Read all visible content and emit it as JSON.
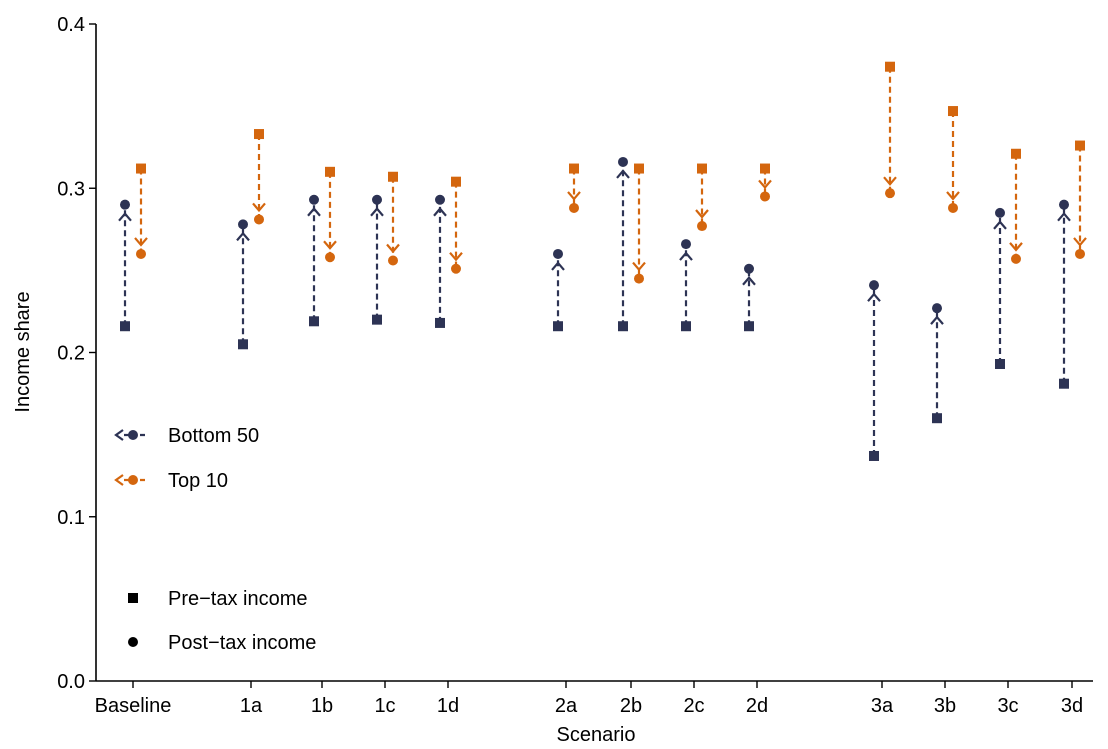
{
  "chart_data": {
    "type": "scatter",
    "title": "",
    "xlabel": "Scenario",
    "ylabel": "Income share",
    "ylim": [
      0,
      0.4
    ],
    "yticks": [
      0.0,
      0.1,
      0.2,
      0.3,
      0.4
    ],
    "ytick_labels": [
      "0.0",
      "0.1",
      "0.2",
      "0.3",
      "0.4"
    ],
    "grid": false,
    "categories": [
      "Baseline",
      "1a",
      "1b",
      "1c",
      "1d",
      "2a",
      "2b",
      "2c",
      "2d",
      "3a",
      "3b",
      "3c",
      "3d"
    ],
    "series": [
      {
        "name": "Bottom 50",
        "color": "#2d3354",
        "pre_tax": [
          0.216,
          0.205,
          0.219,
          0.22,
          0.218,
          0.216,
          0.216,
          0.216,
          0.216,
          0.137,
          0.16,
          0.193,
          0.181
        ],
        "post_tax": [
          0.29,
          0.278,
          0.293,
          0.293,
          0.293,
          0.26,
          0.316,
          0.266,
          0.251,
          0.241,
          0.227,
          0.285,
          0.29
        ]
      },
      {
        "name": "Top 10",
        "color": "#d4660e",
        "pre_tax": [
          0.312,
          0.333,
          0.31,
          0.307,
          0.304,
          0.312,
          0.312,
          0.312,
          0.312,
          0.374,
          0.347,
          0.321,
          0.326
        ],
        "post_tax": [
          0.26,
          0.281,
          0.258,
          0.256,
          0.251,
          0.288,
          0.245,
          0.277,
          0.295,
          0.297,
          0.288,
          0.257,
          0.26
        ]
      }
    ],
    "legend": {
      "placement": "left",
      "groups": [
        "Bottom 50",
        "Top 10"
      ],
      "shapes": [
        {
          "symbol": "square",
          "label": "Pre−tax income"
        },
        {
          "symbol": "circle",
          "label": "Post−tax income"
        }
      ]
    }
  }
}
